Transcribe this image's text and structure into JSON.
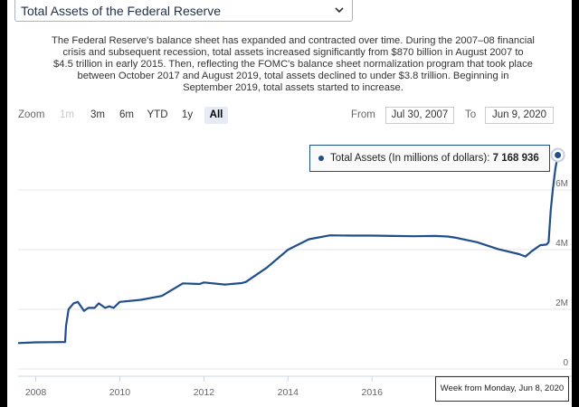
{
  "selector": {
    "title": "Total Assets of the Federal Reserve"
  },
  "description": {
    "lines": [
      "The Federal Reserve's balance sheet has expanded and contracted over time. During the 2007–08 financial",
      "crisis and subsequent recession, total assets increased significantly from $870 billion in August 2007 to",
      "$4.5 trillion in early 2015. Then, reflecting the FOMC's balance sheet normalization program that took place",
      "between October 2017 and August 2019, total assets declined to under $3.8 trillion. Beginning in",
      "September 2019, total assets started to increase."
    ]
  },
  "zoom": {
    "label": "Zoom",
    "buttons": [
      "1m",
      "3m",
      "6m",
      "YTD",
      "1y",
      "All"
    ],
    "selected": "All",
    "disabled": [
      "1m"
    ]
  },
  "range": {
    "from_label": "From",
    "from_value": "Jul 30, 2007",
    "to_label": "To",
    "to_value": "Jun 9, 2020"
  },
  "tooltip": {
    "series": "Total Assets (In millions of dollars):",
    "value": "7 168 936"
  },
  "week_label": "Week from Monday, Jun 8, 2020",
  "colors": {
    "line": "#1f4e8a",
    "grid": "#e6e6e6"
  },
  "chart_data": {
    "type": "line",
    "series": [
      {
        "name": "Total Assets",
        "points": [
          [
            2007.58,
            870000
          ],
          [
            2008.0,
            895000
          ],
          [
            2008.4,
            900000
          ],
          [
            2008.7,
            905000
          ],
          [
            2008.72,
            1450000
          ],
          [
            2008.78,
            2000000
          ],
          [
            2008.9,
            2200000
          ],
          [
            2009.0,
            2250000
          ],
          [
            2009.15,
            1950000
          ],
          [
            2009.25,
            2050000
          ],
          [
            2009.4,
            2050000
          ],
          [
            2009.5,
            2200000
          ],
          [
            2009.65,
            2050000
          ],
          [
            2009.75,
            2100000
          ],
          [
            2009.85,
            2050000
          ],
          [
            2010.0,
            2250000
          ],
          [
            2010.5,
            2320000
          ],
          [
            2011.0,
            2450000
          ],
          [
            2011.5,
            2870000
          ],
          [
            2011.9,
            2850000
          ],
          [
            2012.0,
            2900000
          ],
          [
            2012.5,
            2830000
          ],
          [
            2012.9,
            2880000
          ],
          [
            2013.0,
            2920000
          ],
          [
            2013.5,
            3400000
          ],
          [
            2014.0,
            4000000
          ],
          [
            2014.5,
            4350000
          ],
          [
            2015.0,
            4480000
          ],
          [
            2015.5,
            4470000
          ],
          [
            2016.0,
            4470000
          ],
          [
            2016.5,
            4460000
          ],
          [
            2017.0,
            4450000
          ],
          [
            2017.5,
            4460000
          ],
          [
            2017.8,
            4440000
          ],
          [
            2018.0,
            4400000
          ],
          [
            2018.5,
            4250000
          ],
          [
            2019.0,
            4020000
          ],
          [
            2019.5,
            3850000
          ],
          [
            2019.65,
            3770000
          ],
          [
            2019.8,
            3950000
          ],
          [
            2020.0,
            4150000
          ],
          [
            2020.15,
            4170000
          ],
          [
            2020.2,
            4250000
          ],
          [
            2020.25,
            5300000
          ],
          [
            2020.3,
            6000000
          ],
          [
            2020.36,
            6700000
          ],
          [
            2020.42,
            7168936
          ]
        ]
      }
    ],
    "x_ticks": [
      "2008",
      "2010",
      "2012",
      "2014",
      "2016"
    ],
    "y_ticks": [
      "0",
      "2M",
      "4M",
      "6M"
    ],
    "xlim": [
      2007.58,
      2020.45
    ],
    "ylim": [
      0,
      7700000
    ],
    "grid": true
  }
}
